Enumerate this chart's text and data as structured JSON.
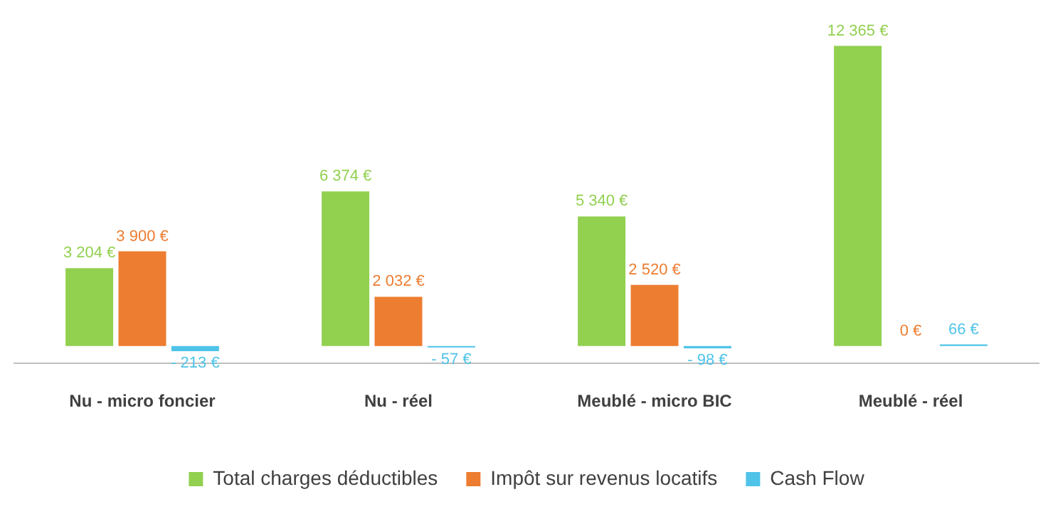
{
  "chart_data": {
    "type": "bar",
    "categories": [
      "Nu - micro foncier",
      "Nu - réel",
      "Meublé - micro BIC",
      "Meublé - réel"
    ],
    "series": [
      {
        "name": "Total charges déductibles",
        "color": "#92d050",
        "values": [
          3204,
          6374,
          5340,
          12365
        ],
        "value_labels": [
          "3 204 €",
          "6 374 €",
          "5 340 €",
          "12 365 €"
        ]
      },
      {
        "name": "Impôt sur revenus locatifs",
        "color": "#ed7d31",
        "values": [
          3900,
          2032,
          2520,
          0
        ],
        "value_labels": [
          "3 900 €",
          "2 032 €",
          "2 520 €",
          "0 €"
        ]
      },
      {
        "name": "Cash Flow",
        "color": "#4fc3e8",
        "values": [
          -213,
          -57,
          -98,
          66
        ],
        "value_labels": [
          "- 213 €",
          "- 57 €",
          "- 98 €",
          "66 €"
        ]
      }
    ],
    "legend": "bottom",
    "grid": false
  }
}
